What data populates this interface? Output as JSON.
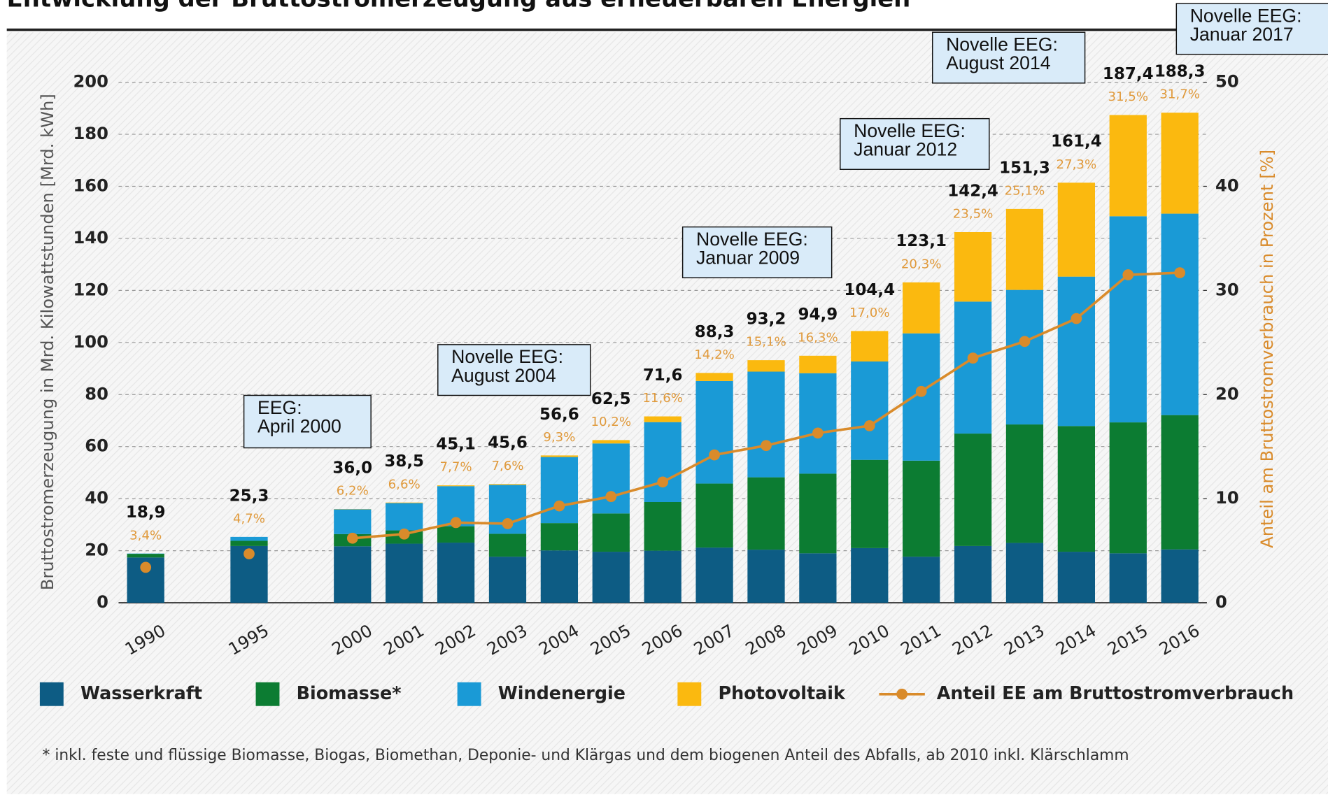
{
  "chart_data": {
    "type": "bar",
    "stacked": true,
    "title": "Entwicklung der Bruttostromerzeugung aus erneuerbaren Energien",
    "ylabel": "Bruttostromerzeugung in Mrd. Kilowattstunden [Mrd. kWh]",
    "y2label": "Anteil am Bruttostromverbrauch in Prozent [%]",
    "categories": [
      "1990",
      null,
      "1995",
      null,
      "2000",
      "2001",
      "2002",
      "2003",
      "2004",
      "2005",
      "2006",
      "2007",
      "2008",
      "2009",
      "2010",
      "2011",
      "2012",
      "2013",
      "2014",
      "2015",
      "2016"
    ],
    "series": [
      {
        "name": "Wasserkraft",
        "color": "#0d5c84",
        "values": [
          17.4,
          null,
          21.8,
          null,
          21.7,
          22.7,
          23.1,
          17.7,
          20.1,
          19.6,
          20.0,
          21.2,
          20.4,
          19.0,
          21.0,
          17.7,
          21.8,
          23.0,
          19.6,
          19.0,
          20.5
        ]
      },
      {
        "name": "Biomasse*",
        "color": "#0c7c32",
        "values": [
          1.4,
          null,
          2.0,
          null,
          4.7,
          5.1,
          6.3,
          8.8,
          10.5,
          14.7,
          18.7,
          24.6,
          27.8,
          30.6,
          33.9,
          36.9,
          43.2,
          45.5,
          48.3,
          50.3,
          51.6
        ]
      },
      {
        "name": "Windenergie",
        "color": "#1a9ad6",
        "values": [
          0.1,
          null,
          1.5,
          null,
          9.5,
          10.5,
          15.4,
          18.8,
          25.4,
          26.9,
          30.7,
          39.4,
          40.6,
          38.6,
          37.8,
          48.9,
          50.7,
          51.7,
          57.4,
          79.2,
          77.4
        ]
      },
      {
        "name": "Photovoltaik",
        "color": "#fbb90f",
        "values": [
          0,
          null,
          0,
          null,
          0.1,
          0.2,
          0.3,
          0.3,
          0.6,
          1.3,
          2.2,
          3.1,
          4.4,
          6.7,
          11.7,
          19.6,
          26.7,
          31.1,
          36.1,
          38.9,
          38.8
        ]
      },
      {
        "name": "Anteil EE am Bruttostromverbrauch",
        "type": "line",
        "axis": "y2",
        "color": "#d98b2b",
        "values": [
          3.4,
          null,
          4.7,
          null,
          6.2,
          6.6,
          7.7,
          7.6,
          9.3,
          10.2,
          11.6,
          14.2,
          15.1,
          16.3,
          17.0,
          20.3,
          23.5,
          25.1,
          27.3,
          31.5,
          31.7
        ],
        "value_labels": [
          "3,4%",
          null,
          "4,7%",
          null,
          "6,2%",
          "6,6%",
          "7,7%",
          "7,6%",
          "9,3%",
          "10,2%",
          "11,6%",
          "14,2%",
          "15,1%",
          "16,3%",
          "17,0%",
          "20,3%",
          "23,5%",
          "25,1%",
          "27,3%",
          "31,5%",
          "31,7%"
        ]
      }
    ],
    "totals": {
      "values": [
        18.9,
        null,
        25.3,
        null,
        36.0,
        38.5,
        45.1,
        45.6,
        56.6,
        62.5,
        71.6,
        88.3,
        93.2,
        94.9,
        104.4,
        123.1,
        142.4,
        151.3,
        161.4,
        187.4,
        188.3
      ],
      "value_labels": [
        "18,9",
        null,
        "25,3",
        null,
        "36,0",
        "38,5",
        "45,1",
        "45,6",
        "56,6",
        "62,5",
        "71,6",
        "88,3",
        "93,2",
        "94,9",
        "104,4",
        "123,1",
        "142,4",
        "151,3",
        "161,4",
        "187,4",
        "188,3"
      ]
    },
    "ylim": [
      0,
      200
    ],
    "yticks": [
      0,
      20,
      40,
      60,
      80,
      100,
      120,
      140,
      160,
      180,
      200
    ],
    "y2lim": [
      0,
      50
    ],
    "y2ticks": [
      0,
      10,
      20,
      30,
      40,
      50
    ],
    "grid": true,
    "legend": "bottom",
    "annotations": [
      {
        "lines": [
          "EEG:",
          "April 2000"
        ]
      },
      {
        "lines": [
          "Novelle EEG:",
          "August 2004"
        ]
      },
      {
        "lines": [
          "Novelle EEG:",
          "Januar 2009"
        ]
      },
      {
        "lines": [
          "Novelle EEG:",
          "Januar 2012"
        ]
      },
      {
        "lines": [
          "Novelle EEG:",
          "August 2014"
        ]
      },
      {
        "lines": [
          "Novelle EEG:",
          "Januar 2017"
        ]
      }
    ],
    "footnote": "* inkl. feste und flüssige Biomasse, Biogas, Biomethan, Deponie- und Klärgas und dem biogenen Anteil des Abfalls, ab 2010 inkl. Klärschlamm"
  }
}
